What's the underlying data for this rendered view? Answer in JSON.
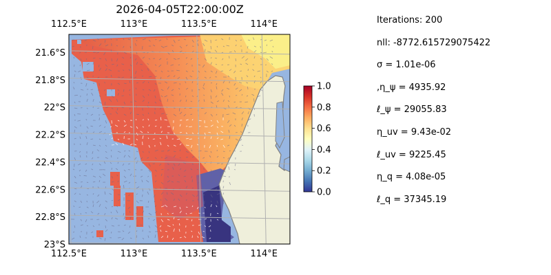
{
  "map": {
    "title": "2026-04-05T22:00:00Z",
    "lon_ticks": [
      "112.5°E",
      "113°E",
      "113.5°E",
      "114°E"
    ],
    "lon_values": [
      112.5,
      113.0,
      113.5,
      114.0
    ],
    "lat_ticks": [
      "21.6°S",
      "21.8°S",
      "22°S",
      "22.2°S",
      "22.4°S",
      "22.6°S",
      "22.8°S",
      "23°S"
    ],
    "lat_values": [
      -21.6,
      -21.8,
      -22.0,
      -22.2,
      -22.4,
      -22.6,
      -22.8,
      -23.0
    ],
    "lon_range": [
      112.5,
      114.2
    ],
    "lat_range": [
      -23.0,
      -21.47
    ],
    "gridlines": true,
    "colormap": "RdYlBu_r",
    "colors": {
      "ocean": "#97b6e1",
      "land": "#efefdb",
      "coast": "#808080",
      "grid": "#b0b0b0"
    }
  },
  "colorbar": {
    "ticks": [
      "0.0",
      "0.2",
      "0.4",
      "0.6",
      "0.8",
      "1.0"
    ],
    "tick_values": [
      0.0,
      0.2,
      0.4,
      0.6,
      0.8,
      1.0
    ],
    "range": [
      0,
      1
    ]
  },
  "stats": [
    "Iterations: 200",
    "nll: -8772.615729075422",
    "σ = 1.01e-06",
    ",η_ψ = 4935.92",
    "ℓ_ψ = 29055.83",
    "η_uv = 9.43e-02",
    "ℓ_uv = 9225.45",
    "η_q = 4.08e-05",
    "ℓ_q = 37345.19"
  ]
}
